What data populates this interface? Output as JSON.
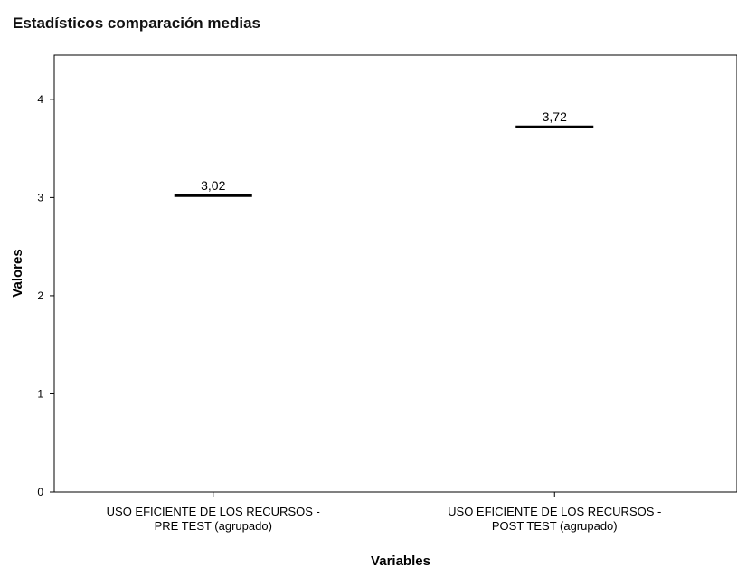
{
  "chart_data": {
    "type": "scatter",
    "title": "Estadísticos comparación medias",
    "xlabel": "Variables",
    "ylabel": "Valores",
    "ylim": [
      0,
      4.45
    ],
    "yticks": [
      "0",
      "1",
      "2",
      "3",
      "4"
    ],
    "grid": false,
    "legend": "none",
    "categories": [
      [
        "USO EFICIENTE DE LOS RECURSOS -",
        "PRE TEST (agrupado)"
      ],
      [
        "USO EFICIENTE DE LOS RECURSOS -",
        "POST TEST (agrupado)"
      ]
    ],
    "values": [
      3.02,
      3.72
    ],
    "value_labels": [
      "3,02",
      "3,72"
    ],
    "marker_color": "#000000"
  }
}
